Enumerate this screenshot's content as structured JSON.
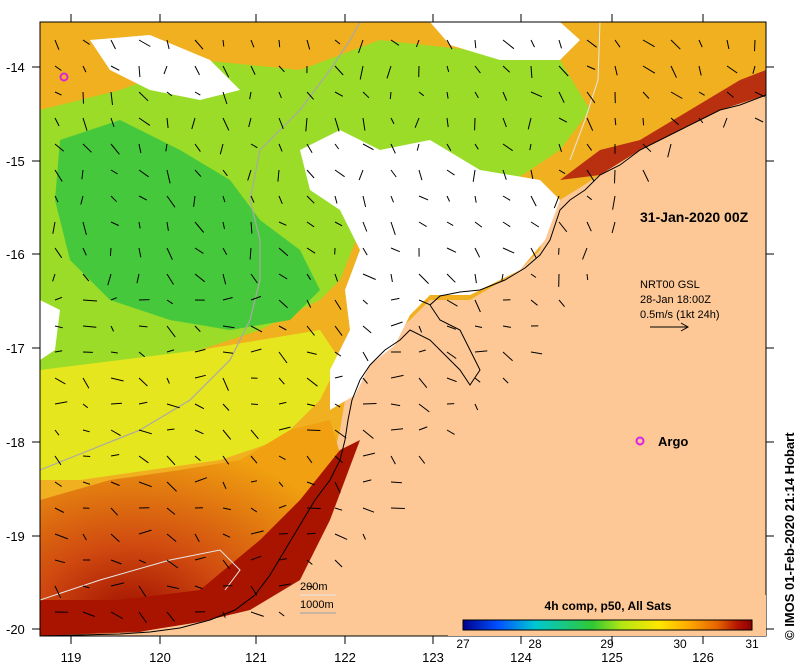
{
  "map": {
    "title": "31-Jan-2020 00Z",
    "x_ticks": [
      "119",
      "120",
      "121",
      "122",
      "123",
      "124",
      "125",
      "126"
    ],
    "y_ticks": [
      "-14",
      "-15",
      "-16",
      "-17",
      "-18",
      "-19",
      "-20"
    ],
    "ocean_colors": {
      "land": "#fdc896",
      "no_data": "#ffffff",
      "coast": "#000000"
    }
  },
  "current_legend": {
    "line1": "NRT00 GSL",
    "line2": "28-Jan 18:00Z",
    "line3": "0.5m/s (1kt 24h)"
  },
  "argo": {
    "label": "Argo",
    "marker_color": "#e020e0"
  },
  "depth_legend": {
    "contour1": "200m",
    "contour2": "1000m"
  },
  "colorbar": {
    "title": "4h comp, p50, All Sats",
    "ticks": [
      "27",
      "28",
      "29",
      "30",
      "31"
    ],
    "range": [
      27,
      31
    ],
    "stops": [
      "#00008b",
      "#0050ff",
      "#00c8d2",
      "#32c832",
      "#b4e614",
      "#ffe600",
      "#ffaa00",
      "#e66400",
      "#b41400",
      "#8b0000"
    ]
  },
  "credit": "© IMOS 01-Feb-2020 21:14 Hobart"
}
